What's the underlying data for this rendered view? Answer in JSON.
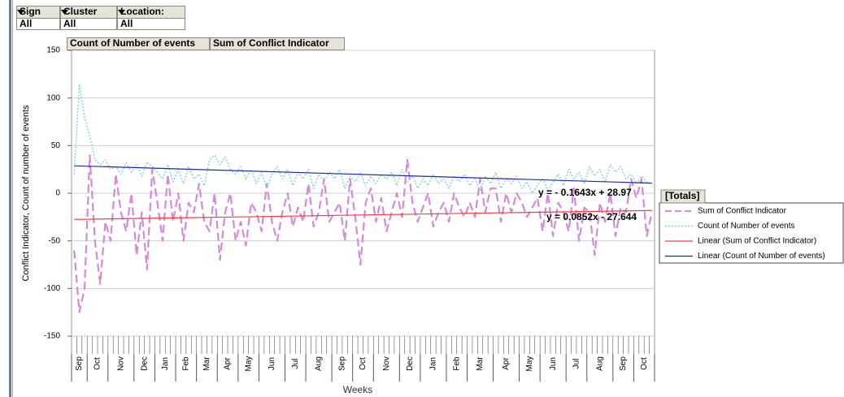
{
  "filters": [
    {
      "label": "Sign",
      "value": "All"
    },
    {
      "label": "Cluster",
      "value": "All"
    },
    {
      "label": "Location:",
      "value": "All"
    }
  ],
  "chart_data": {
    "type": "line",
    "data_fields": [
      "Count of Number of events",
      "Sum of Conflict Indicator"
    ],
    "ylabel": "Conflict Indicator, Count of number of events",
    "xlabel": "Weeks",
    "ylim": [
      -150,
      150
    ],
    "yticks": [
      -150,
      -100,
      -50,
      0,
      50,
      100,
      150
    ],
    "grid": true,
    "month_groups": [
      {
        "label": "Sep",
        "weeks": 3
      },
      {
        "label": "Oct",
        "weeks": 4
      },
      {
        "label": "Nov",
        "weeks": 5
      },
      {
        "label": "Dec",
        "weeks": 4
      },
      {
        "label": "Jan",
        "weeks": 4
      },
      {
        "label": "Feb",
        "weeks": 4
      },
      {
        "label": "Mar",
        "weeks": 4
      },
      {
        "label": "Apr",
        "weeks": 4
      },
      {
        "label": "May",
        "weeks": 4
      },
      {
        "label": "Jun",
        "weeks": 5
      },
      {
        "label": "Jul",
        "weeks": 4
      },
      {
        "label": "Aug",
        "weeks": 5
      },
      {
        "label": "Sep",
        "weeks": 4
      },
      {
        "label": "Oct",
        "weeks": 4
      },
      {
        "label": "Nov",
        "weeks": 5
      },
      {
        "label": "Dec",
        "weeks": 4
      },
      {
        "label": "Jan",
        "weeks": 5
      },
      {
        "label": "Feb",
        "weeks": 4
      },
      {
        "label": "Mar",
        "weeks": 5
      },
      {
        "label": "Apr",
        "weeks": 5
      },
      {
        "label": "May",
        "weeks": 4
      },
      {
        "label": "Jun",
        "weeks": 5
      },
      {
        "label": "Jul",
        "weeks": 4
      },
      {
        "label": "Aug",
        "weeks": 5
      },
      {
        "label": "Sep",
        "weeks": 4
      },
      {
        "label": "Oct",
        "weeks": 4
      }
    ],
    "series": [
      {
        "name": "Sum of Conflict Indicator",
        "color": "#d48ad8",
        "style": "dashed",
        "values": [
          -60,
          -125,
          -100,
          40,
          -50,
          -95,
          -30,
          -50,
          20,
          -20,
          -40,
          0,
          -65,
          -20,
          -80,
          25,
          -10,
          -50,
          20,
          -30,
          0,
          -50,
          -10,
          -20,
          10,
          -30,
          -40,
          0,
          -70,
          -20,
          0,
          -50,
          -30,
          -55,
          -10,
          -20,
          -40,
          10,
          -30,
          -50,
          -20,
          0,
          -35,
          -15,
          -30,
          10,
          -35,
          -20,
          15,
          -30,
          -20,
          -10,
          -50,
          15,
          -25,
          -75,
          -10,
          5,
          -30,
          -5,
          -40,
          -20,
          0,
          -25,
          35,
          -10,
          -30,
          -15,
          0,
          -35,
          -20,
          -10,
          -30,
          0,
          -15,
          -25,
          -10,
          -25,
          15,
          -20,
          5,
          5,
          -30,
          0,
          -20,
          0,
          -10,
          -25,
          -15,
          -5,
          -40,
          0,
          -45,
          -10,
          -20,
          -40,
          5,
          -50,
          -15,
          -20,
          -65,
          -10,
          -30,
          0,
          -45,
          -15,
          -20,
          15,
          -5,
          15,
          -45,
          -20
        ]
      },
      {
        "name": "Count of Number of events",
        "color": "#7fd0dc",
        "style": "dotted",
        "values": [
          20,
          115,
          80,
          60,
          35,
          30,
          35,
          25,
          28,
          20,
          32,
          22,
          30,
          18,
          33,
          28,
          22,
          15,
          30,
          12,
          25,
          10,
          28,
          15,
          20,
          8,
          35,
          40,
          30,
          38,
          25,
          20,
          28,
          15,
          25,
          10,
          22,
          5,
          20,
          28,
          15,
          25,
          8,
          22,
          15,
          25,
          5,
          20,
          12,
          22,
          15,
          25,
          5,
          18,
          12,
          22,
          8,
          18,
          10,
          20,
          15,
          22,
          8,
          25,
          12,
          18,
          5,
          15,
          8,
          20,
          10,
          15,
          5,
          18,
          12,
          20,
          8,
          15,
          3,
          18,
          10,
          22,
          5,
          15,
          10,
          18,
          5,
          12,
          0,
          8,
          15,
          3,
          12,
          20,
          8,
          25,
          15,
          22,
          10,
          28,
          18,
          25,
          12,
          30,
          22,
          28,
          15,
          20,
          10,
          18,
          12,
          10
        ]
      }
    ],
    "trendlines": [
      {
        "name": "Linear (Sum of Conflict Indicator)",
        "color": "#e8403c",
        "slope": 0.0852,
        "intercept": -27.644,
        "equation": "y = 0.0852x - 27.644"
      },
      {
        "name": "Linear (Count of Number of events)",
        "color": "#1c2c9c",
        "slope": -0.1643,
        "intercept": 28.97,
        "equation": "y = - 0.1643x + 28.97"
      }
    ],
    "legend_title": "[Totals]",
    "legend": "right"
  }
}
